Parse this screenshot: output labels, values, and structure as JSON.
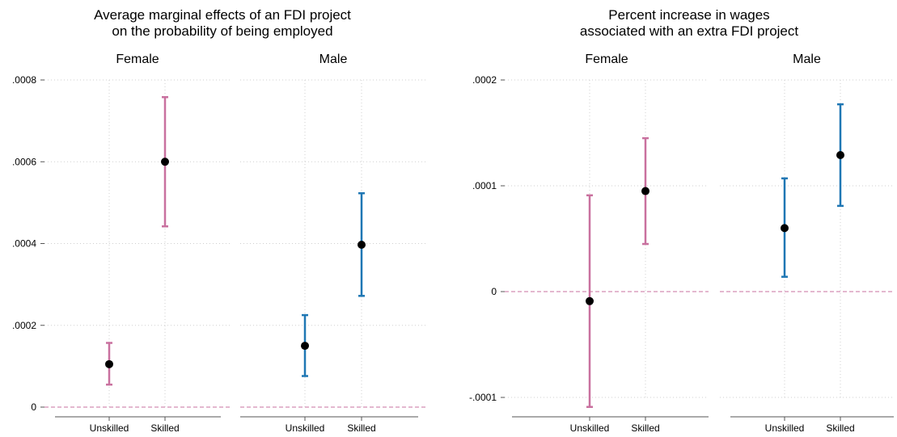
{
  "chart_data": [
    {
      "type": "errorbar",
      "title_lines": [
        "Average marginal effects of an FDI project",
        "on the probability of being employed"
      ],
      "ylim": [
        0,
        0.0008
      ],
      "yticks": [
        0,
        0.0002,
        0.0004,
        0.0006,
        0.0008
      ],
      "ytick_labels": [
        "0",
        ".0002",
        ".0004",
        ".0006",
        ".0008"
      ],
      "reference_line": 0,
      "grid": true,
      "categories": [
        "Unskilled",
        "Skilled"
      ],
      "panels": [
        {
          "name": "Female",
          "color": "#c9719f",
          "points": [
            {
              "category": "Unskilled",
              "estimate": 0.000105,
              "lower": 5.5e-05,
              "upper": 0.000157
            },
            {
              "category": "Skilled",
              "estimate": 0.0006,
              "lower": 0.000442,
              "upper": 0.000758
            }
          ]
        },
        {
          "name": "Male",
          "color": "#1f77b4",
          "points": [
            {
              "category": "Unskilled",
              "estimate": 0.00015,
              "lower": 7.6e-05,
              "upper": 0.000225
            },
            {
              "category": "Skilled",
              "estimate": 0.000397,
              "lower": 0.000272,
              "upper": 0.000523
            }
          ]
        }
      ]
    },
    {
      "type": "errorbar",
      "title_lines": [
        "Percent increase in wages",
        "associated with an extra FDI project"
      ],
      "ylim": [
        -0.0001,
        0.0002
      ],
      "yticks": [
        -0.0001,
        0,
        0.0001,
        0.0002
      ],
      "ytick_labels": [
        "-.0001",
        "0",
        ".0001",
        ".0002"
      ],
      "reference_line": 0,
      "grid": true,
      "categories": [
        "Unskilled",
        "Skilled"
      ],
      "panels": [
        {
          "name": "Female",
          "color": "#c9719f",
          "points": [
            {
              "category": "Unskilled",
              "estimate": -9e-06,
              "lower": -0.000109,
              "upper": 9.1e-05
            },
            {
              "category": "Skilled",
              "estimate": 9.5e-05,
              "lower": 4.5e-05,
              "upper": 0.000145
            }
          ]
        },
        {
          "name": "Male",
          "color": "#1f77b4",
          "points": [
            {
              "category": "Unskilled",
              "estimate": 6e-05,
              "lower": 1.4e-05,
              "upper": 0.000107
            },
            {
              "category": "Skilled",
              "estimate": 0.000129,
              "lower": 8.1e-05,
              "upper": 0.000177
            }
          ]
        }
      ]
    }
  ]
}
